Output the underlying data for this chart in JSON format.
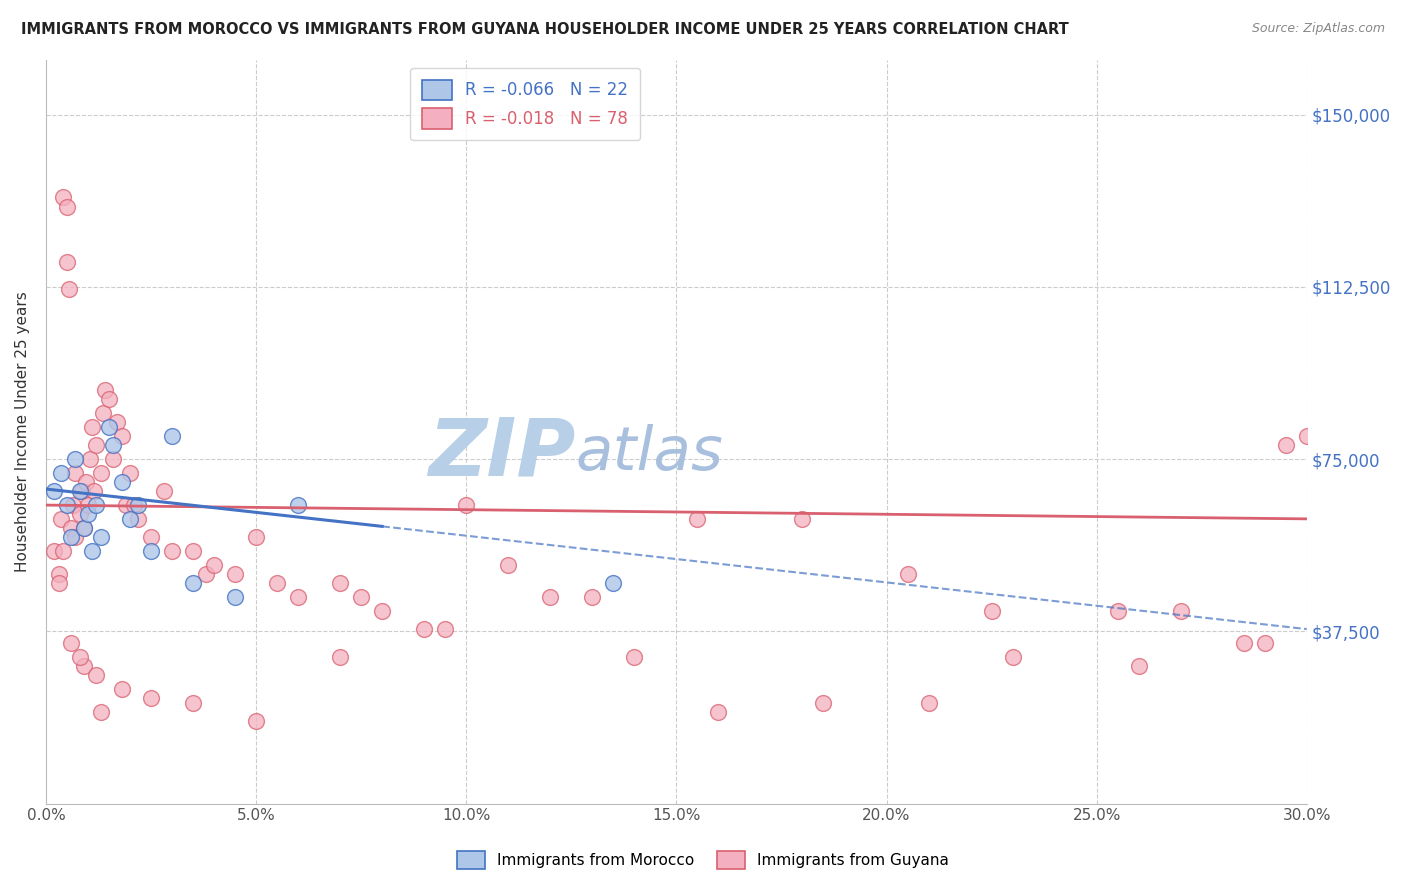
{
  "title": "IMMIGRANTS FROM MOROCCO VS IMMIGRANTS FROM GUYANA HOUSEHOLDER INCOME UNDER 25 YEARS CORRELATION CHART",
  "source": "Source: ZipAtlas.com",
  "ylabel": "Householder Income Under 25 years",
  "xlabel_ticks": [
    "0.0%",
    "5.0%",
    "10.0%",
    "15.0%",
    "20.0%",
    "25.0%",
    "30.0%"
  ],
  "xlabel_vals": [
    0.0,
    5.0,
    10.0,
    15.0,
    20.0,
    25.0,
    30.0
  ],
  "ytick_labels": [
    "$37,500",
    "$75,000",
    "$112,500",
    "$150,000"
  ],
  "ytick_vals": [
    37500,
    75000,
    112500,
    150000
  ],
  "xlim": [
    0.0,
    30.0
  ],
  "ylim": [
    0,
    162000
  ],
  "morocco_R": -0.066,
  "morocco_N": 22,
  "guyana_R": -0.018,
  "guyana_N": 78,
  "morocco_color": "#aec6e8",
  "guyana_color": "#f4b0c0",
  "morocco_line_color": "#4472c4",
  "guyana_line_color": "#d9606f",
  "watermark_zip_color": "#c5d9f0",
  "watermark_atlas_color": "#b0c8e8",
  "morocco_x": [
    0.2,
    0.35,
    0.5,
    0.6,
    0.7,
    0.8,
    0.9,
    1.0,
    1.1,
    1.2,
    1.3,
    1.5,
    1.6,
    1.8,
    2.0,
    2.2,
    2.5,
    3.0,
    3.5,
    4.5,
    6.0,
    13.5
  ],
  "morocco_y": [
    68000,
    72000,
    65000,
    58000,
    75000,
    68000,
    60000,
    63000,
    55000,
    65000,
    58000,
    82000,
    78000,
    70000,
    62000,
    65000,
    55000,
    80000,
    48000,
    45000,
    65000,
    48000
  ],
  "guyana_x": [
    0.2,
    0.3,
    0.35,
    0.4,
    0.5,
    0.5,
    0.55,
    0.6,
    0.65,
    0.7,
    0.7,
    0.8,
    0.85,
    0.9,
    0.95,
    1.0,
    1.05,
    1.1,
    1.15,
    1.2,
    1.3,
    1.35,
    1.4,
    1.5,
    1.6,
    1.7,
    1.8,
    1.9,
    2.0,
    2.1,
    2.2,
    2.5,
    2.8,
    3.0,
    3.5,
    3.8,
    4.0,
    4.5,
    5.0,
    5.5,
    6.0,
    7.0,
    7.5,
    8.0,
    9.0,
    10.0,
    12.0,
    13.0,
    15.5,
    18.0,
    20.5,
    22.5,
    25.5,
    27.0,
    28.5,
    29.5,
    0.3,
    0.6,
    0.9,
    1.2,
    1.8,
    2.5,
    3.5,
    5.0,
    7.0,
    9.5,
    11.0,
    14.0,
    16.0,
    18.5,
    21.0,
    23.0,
    26.0,
    29.0,
    30.0,
    0.4,
    0.8,
    1.3
  ],
  "guyana_y": [
    55000,
    50000,
    62000,
    132000,
    130000,
    118000,
    112000,
    60000,
    65000,
    58000,
    72000,
    63000,
    68000,
    60000,
    70000,
    65000,
    75000,
    82000,
    68000,
    78000,
    72000,
    85000,
    90000,
    88000,
    75000,
    83000,
    80000,
    65000,
    72000,
    65000,
    62000,
    58000,
    68000,
    55000,
    55000,
    50000,
    52000,
    50000,
    58000,
    48000,
    45000,
    48000,
    45000,
    42000,
    38000,
    65000,
    45000,
    45000,
    62000,
    62000,
    50000,
    42000,
    42000,
    42000,
    35000,
    78000,
    48000,
    35000,
    30000,
    28000,
    25000,
    23000,
    22000,
    18000,
    32000,
    38000,
    52000,
    32000,
    20000,
    22000,
    22000,
    32000,
    30000,
    35000,
    80000,
    55000,
    32000,
    20000
  ],
  "morocco_trend_x0": 0.0,
  "morocco_trend_y0": 68500,
  "morocco_trend_x1": 30.0,
  "morocco_trend_y1": 38000,
  "morocco_solid_end": 8.0,
  "guyana_trend_x0": 0.0,
  "guyana_trend_y0": 65000,
  "guyana_trend_x1": 30.0,
  "guyana_trend_y1": 62000
}
